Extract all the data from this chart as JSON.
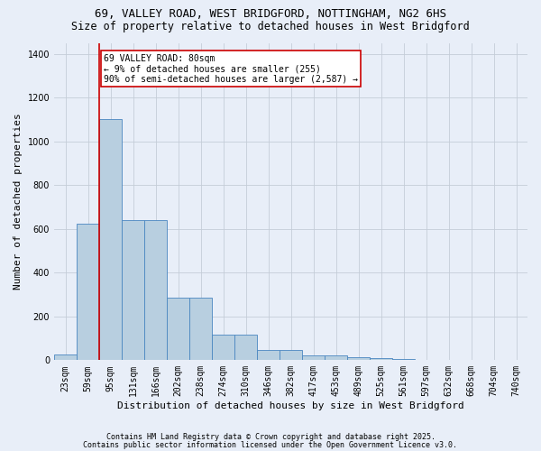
{
  "title_line1": "69, VALLEY ROAD, WEST BRIDGFORD, NOTTINGHAM, NG2 6HS",
  "title_line2": "Size of property relative to detached houses in West Bridgford",
  "xlabel": "Distribution of detached houses by size in West Bridgford",
  "ylabel": "Number of detached properties",
  "bin_labels": [
    "23sqm",
    "59sqm",
    "95sqm",
    "131sqm",
    "166sqm",
    "202sqm",
    "238sqm",
    "274sqm",
    "310sqm",
    "346sqm",
    "382sqm",
    "417sqm",
    "453sqm",
    "489sqm",
    "525sqm",
    "561sqm",
    "597sqm",
    "632sqm",
    "668sqm",
    "704sqm",
    "740sqm"
  ],
  "bar_heights": [
    25,
    625,
    1100,
    640,
    640,
    285,
    285,
    115,
    115,
    45,
    45,
    20,
    20,
    15,
    10,
    5,
    3,
    2,
    1,
    1,
    0
  ],
  "bar_color": "#b8cfe0",
  "bar_edge_color": "#4a86c0",
  "background_color": "#e8eef8",
  "grid_color": "#c5cdd8",
  "vline_bin": 1,
  "vline_color": "#cc0000",
  "annotation_text": "69 VALLEY ROAD: 80sqm\n← 9% of detached houses are smaller (255)\n90% of semi-detached houses are larger (2,587) →",
  "annotation_box_facecolor": "#ffffff",
  "annotation_box_edgecolor": "#cc0000",
  "ylim": [
    0,
    1450
  ],
  "yticks": [
    0,
    200,
    400,
    600,
    800,
    1000,
    1200,
    1400
  ],
  "footnote1": "Contains HM Land Registry data © Crown copyright and database right 2025.",
  "footnote2": "Contains public sector information licensed under the Open Government Licence v3.0.",
  "title1_fontsize": 9,
  "title2_fontsize": 8.5,
  "ylabel_fontsize": 8,
  "xlabel_fontsize": 8,
  "tick_fontsize": 7,
  "annot_fontsize": 7,
  "footnote_fontsize": 6
}
